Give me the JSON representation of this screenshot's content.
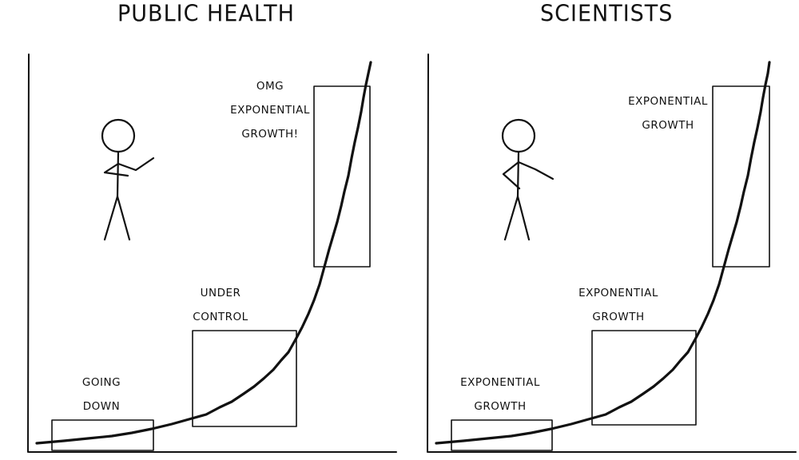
{
  "panels": [
    {
      "title": "PUBLIC HEALTH",
      "labels": [
        {
          "lines": [
            "OMG",
            "EXPONENTIAL",
            "GROWTH!"
          ]
        },
        {
          "lines": [
            "UNDER",
            "CONTROL"
          ]
        },
        {
          "lines": [
            "GOING",
            "DOWN"
          ]
        }
      ]
    },
    {
      "title": "SCIENTISTS",
      "labels": [
        {
          "lines": [
            "EXPONENTIAL",
            "GROWTH"
          ]
        },
        {
          "lines": [
            "EXPONENTIAL",
            "GROWTH"
          ]
        },
        {
          "lines": [
            "EXPONENTIAL",
            "GROWTH"
          ]
        }
      ]
    }
  ],
  "colors": {
    "ink": "#111111",
    "background": "#ffffff"
  }
}
